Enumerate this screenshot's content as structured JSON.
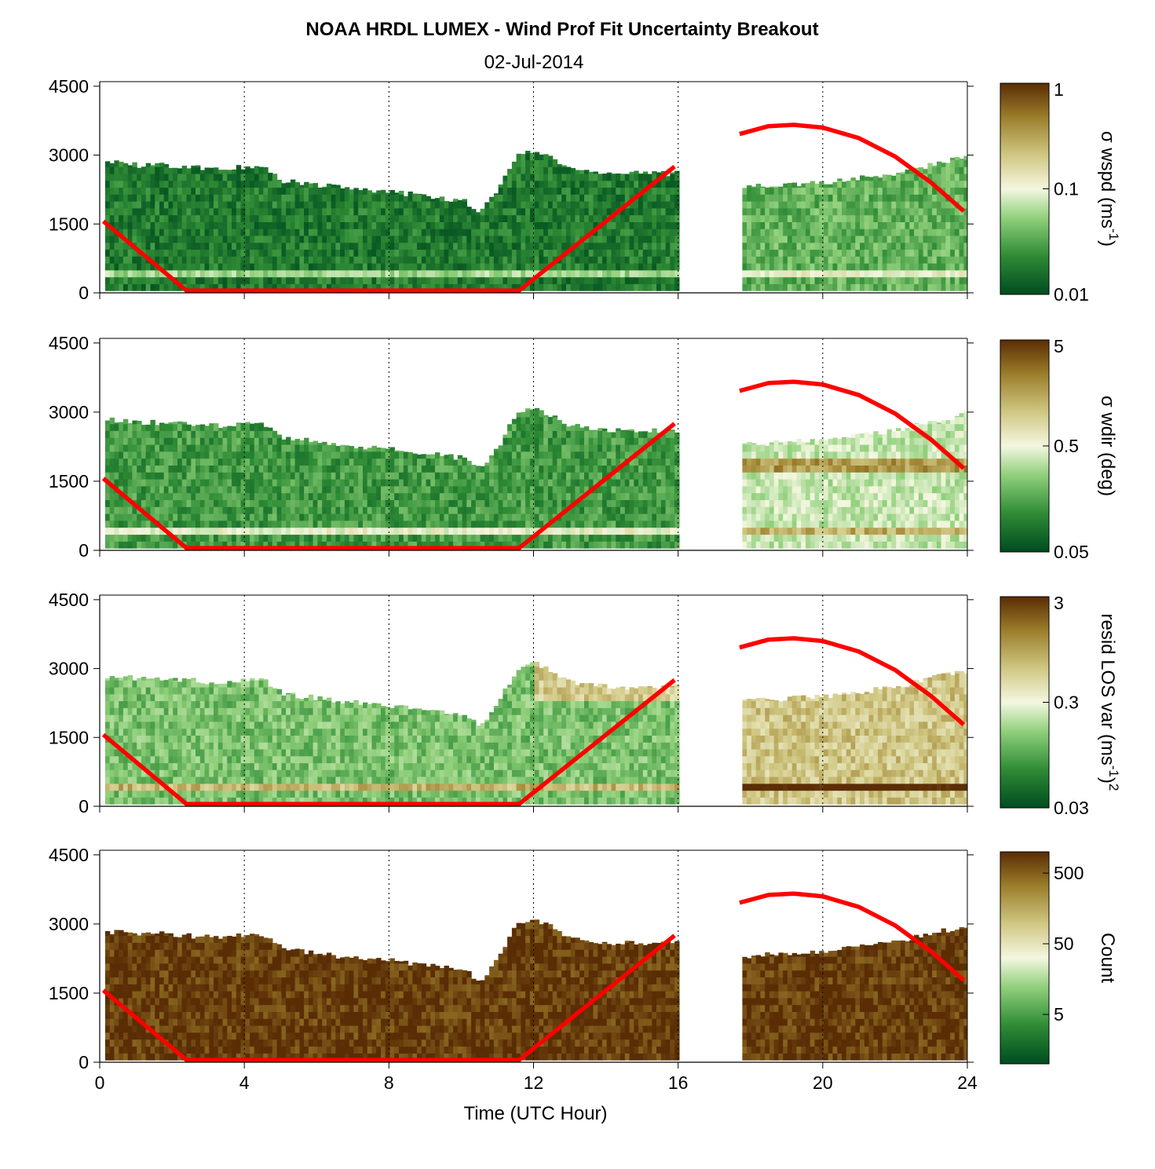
{
  "chart_data": {
    "type": "heatmap",
    "title": "NOAA HRDL LUMEX - Wind Prof Fit Uncertainty Breakout",
    "subtitle": "02-Jul-2014",
    "xlabel": "Time (UTC Hour)",
    "xlim": [
      0,
      24
    ],
    "xticks": [
      "0",
      "4",
      "8",
      "12",
      "16",
      "20",
      "24"
    ],
    "ylim": [
      0,
      4600
    ],
    "yticks": [
      "0",
      "1500",
      "3000",
      "4500"
    ],
    "grid": "dotted vertical lines at x ticks",
    "colormap": [
      "#004c1f",
      "#2e8b35",
      "#8fcf7a",
      "#f4f7e0",
      "#d0c783",
      "#9b7d2a",
      "#5a2d05"
    ],
    "line_color": "#ff0000",
    "red_line": {
      "segment1": {
        "x": [
          0.1,
          2.4,
          11.6,
          15.9
        ],
        "y": [
          1560,
          50,
          50,
          2750
        ]
      },
      "segment2": {
        "x": [
          17.7,
          18.5,
          19.2,
          20.0,
          21.0,
          22.0,
          23.0,
          23.9
        ],
        "y": [
          3460,
          3630,
          3660,
          3600,
          3370,
          2970,
          2400,
          1780
        ]
      }
    },
    "data_gap_hours": [
      15.9,
      17.7
    ],
    "panels": [
      {
        "cb_label": "σ wspd (ms",
        "cb_label_sup": "-1",
        "cb_label_end": ")",
        "cb_ticks": [
          "1",
          "0.1",
          "0.01"
        ],
        "cb_min": 0.01,
        "cb_max": 1,
        "cb_scale": "log",
        "top_profile": {
          "x": [
            0.1,
            1,
            2,
            3,
            4,
            4.5,
            5,
            6,
            7,
            8,
            9,
            10,
            10.5,
            11,
            11.5,
            12,
            13,
            14,
            15,
            15.9,
            17.7,
            19,
            20,
            21,
            22,
            23,
            23.9
          ],
          "y": [
            2850,
            2780,
            2780,
            2700,
            2750,
            2750,
            2450,
            2350,
            2250,
            2200,
            2100,
            2000,
            1750,
            2300,
            3000,
            3100,
            2700,
            2600,
            2600,
            2600,
            2300,
            2350,
            2400,
            2500,
            2600,
            2800,
            2950
          ]
        }
      },
      {
        "cb_label": "σ wdir (deg)",
        "cb_ticks": [
          "5",
          "0.5",
          "0.05"
        ],
        "cb_min": 0.05,
        "cb_max": 5,
        "cb_scale": "log",
        "top_profile": {
          "x": [
            0.1,
            1,
            2,
            3,
            4,
            4.5,
            5,
            6,
            7,
            8,
            9,
            10,
            10.5,
            11,
            11.5,
            12,
            13,
            14,
            15,
            15.9,
            17.7,
            19,
            20,
            21,
            22,
            23,
            23.9
          ],
          "y": [
            2850,
            2780,
            2780,
            2700,
            2750,
            2750,
            2450,
            2350,
            2250,
            2200,
            2100,
            2000,
            1750,
            2300,
            3000,
            3100,
            2700,
            2600,
            2600,
            2600,
            2300,
            2350,
            2400,
            2500,
            2600,
            2800,
            2950
          ]
        }
      },
      {
        "cb_label": "resid LOS var (ms",
        "cb_label_sup": "-1",
        "cb_label_end": ")",
        "cb_label_sup2": "2",
        "cb_ticks": [
          "3",
          "0.3",
          "0.03"
        ],
        "cb_min": 0.03,
        "cb_max": 3,
        "cb_scale": "log",
        "top_profile": {
          "x": [
            0.1,
            1,
            2,
            3,
            4,
            4.5,
            5,
            6,
            7,
            8,
            9,
            10,
            10.5,
            11,
            11.5,
            12,
            13,
            14,
            15,
            15.9,
            17.7,
            19,
            20,
            21,
            22,
            23,
            23.9
          ],
          "y": [
            2850,
            2780,
            2780,
            2700,
            2750,
            2750,
            2450,
            2350,
            2250,
            2200,
            2100,
            2000,
            1750,
            2300,
            3000,
            3100,
            2700,
            2600,
            2600,
            2600,
            2300,
            2350,
            2400,
            2500,
            2600,
            2800,
            2950
          ]
        }
      },
      {
        "cb_label": "Count",
        "cb_ticks": [
          "500",
          "50",
          "5"
        ],
        "cb_min": 1,
        "cb_max": 1000,
        "cb_scale": "log",
        "top_profile": {
          "x": [
            0.1,
            1,
            2,
            3,
            4,
            4.5,
            5,
            6,
            7,
            8,
            9,
            10,
            10.5,
            11,
            11.5,
            12,
            13,
            14,
            15,
            15.9,
            17.7,
            19,
            20,
            21,
            22,
            23,
            23.9
          ],
          "y": [
            2850,
            2780,
            2780,
            2700,
            2750,
            2750,
            2450,
            2350,
            2250,
            2200,
            2100,
            2000,
            1750,
            2300,
            3000,
            3100,
            2700,
            2600,
            2600,
            2600,
            2300,
            2350,
            2400,
            2500,
            2600,
            2800,
            2950
          ]
        }
      }
    ]
  }
}
